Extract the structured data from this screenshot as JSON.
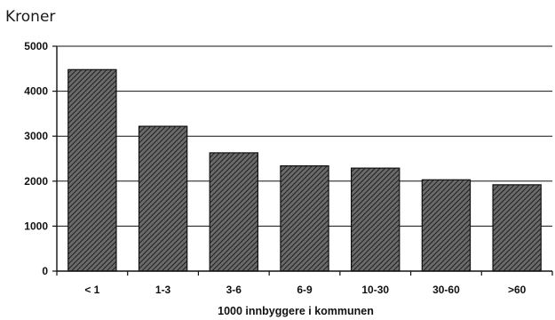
{
  "chart_data": {
    "type": "bar",
    "unit_label": "Kroner",
    "categories": [
      "< 1",
      "1-3",
      "3-6",
      "6-9",
      "10-30",
      "30-60",
      ">60"
    ],
    "values": [
      4480,
      3220,
      2630,
      2340,
      2290,
      2030,
      1920
    ],
    "xlabel": "1000 innbyggere i kommunen",
    "ylabel": "",
    "ylim": [
      0,
      5000
    ],
    "yticks": [
      0,
      1000,
      2000,
      3000,
      4000,
      5000
    ],
    "grid": true,
    "legend": "none",
    "colors": {
      "bar_fill_base": "#5a5a5a",
      "bar_hatch": "#2a2a2a",
      "gridline": "#111111",
      "text": "#111111"
    }
  }
}
